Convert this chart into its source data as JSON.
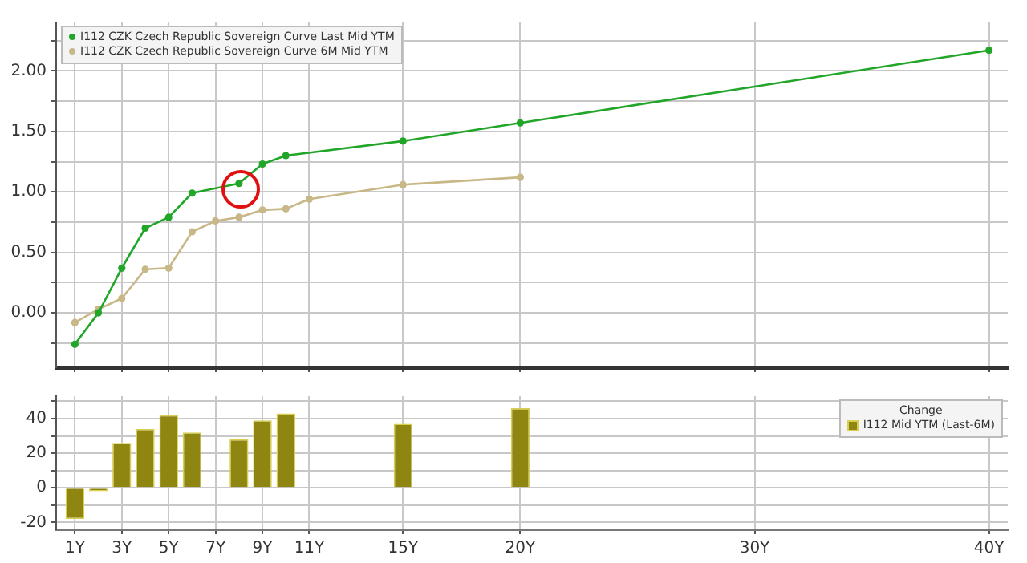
{
  "chart_data": [
    {
      "type": "line",
      "xlim": [
        0.2,
        40.8
      ],
      "ylim": [
        -0.45,
        2.4
      ],
      "xticks": [
        {
          "value": 1,
          "label": null
        },
        {
          "value": 3,
          "label": null
        },
        {
          "value": 5,
          "label": null
        },
        {
          "value": 7,
          "label": null
        },
        {
          "value": 9,
          "label": null
        },
        {
          "value": 11,
          "label": null
        },
        {
          "value": 15,
          "label": null
        },
        {
          "value": 20,
          "label": null
        },
        {
          "value": 30,
          "label": null
        },
        {
          "value": 40,
          "label": null
        }
      ],
      "yticks": [
        {
          "value": -0.25,
          "label": null
        },
        {
          "value": 0,
          "label": "0.00"
        },
        {
          "value": 0.25,
          "label": null
        },
        {
          "value": 0.5,
          "label": "0.50"
        },
        {
          "value": 0.75,
          "label": null
        },
        {
          "value": 1,
          "label": "1.00"
        },
        {
          "value": 1.25,
          "label": null
        },
        {
          "value": 1.5,
          "label": "1.50"
        },
        {
          "value": 1.75,
          "label": null
        },
        {
          "value": 2,
          "label": "2.00"
        },
        {
          "value": 2.25,
          "label": null
        }
      ],
      "tick_labels": "y",
      "grid": true,
      "legend": "top left",
      "marker": "circle",
      "series": [
        {
          "name": "I112 CZK Czech Republic Sovereign Curve Last Mid YTM",
          "color": "#22a62a",
          "x": [
            1,
            2,
            3,
            4,
            5,
            6,
            8,
            9,
            10,
            15,
            20,
            40
          ],
          "values": [
            -0.26,
            0.0,
            0.37,
            0.7,
            0.79,
            0.99,
            1.07,
            1.23,
            1.3,
            1.42,
            1.57,
            2.17
          ]
        },
        {
          "name": "I112 CZK Czech Republic Sovereign Curve 6M Mid YTM",
          "color": "#c8b888",
          "x": [
            1,
            2,
            3,
            4,
            5,
            6,
            7,
            8,
            9,
            10,
            11,
            15,
            20
          ],
          "values": [
            -0.08,
            0.03,
            0.12,
            0.36,
            0.37,
            0.67,
            0.76,
            0.79,
            0.85,
            0.86,
            0.94,
            1.06,
            1.12
          ]
        }
      ]
    },
    {
      "type": "bar",
      "xlim": [
        0.2,
        40.8
      ],
      "ylim": [
        -24,
        53
      ],
      "xticks": [
        {
          "value": 1,
          "label": "1Y"
        },
        {
          "value": 3,
          "label": "3Y"
        },
        {
          "value": 5,
          "label": "5Y"
        },
        {
          "value": 7,
          "label": "7Y"
        },
        {
          "value": 9,
          "label": "9Y"
        },
        {
          "value": 11,
          "label": "11Y"
        },
        {
          "value": 15,
          "label": "15Y"
        },
        {
          "value": 20,
          "label": "20Y"
        },
        {
          "value": 30,
          "label": "30Y"
        },
        {
          "value": 40,
          "label": "40Y"
        }
      ],
      "yticks": [
        -20,
        {
          "value": -10,
          "label": null
        },
        0,
        {
          "value": 10,
          "label": null
        },
        20,
        {
          "value": 30,
          "label": null
        },
        40,
        {
          "value": 50,
          "label": null
        }
      ],
      "grid": true,
      "legend": "top right",
      "legend_title": "Change",
      "series": [
        {
          "name": "I112 Mid YTM (Last-6M)",
          "color": "#8f8612",
          "x": [
            1,
            2,
            3,
            4,
            5,
            6,
            8,
            9,
            10,
            15,
            20
          ],
          "values": [
            -18,
            -2,
            26,
            34,
            42,
            32,
            28,
            39,
            43,
            37,
            46
          ]
        }
      ]
    }
  ]
}
